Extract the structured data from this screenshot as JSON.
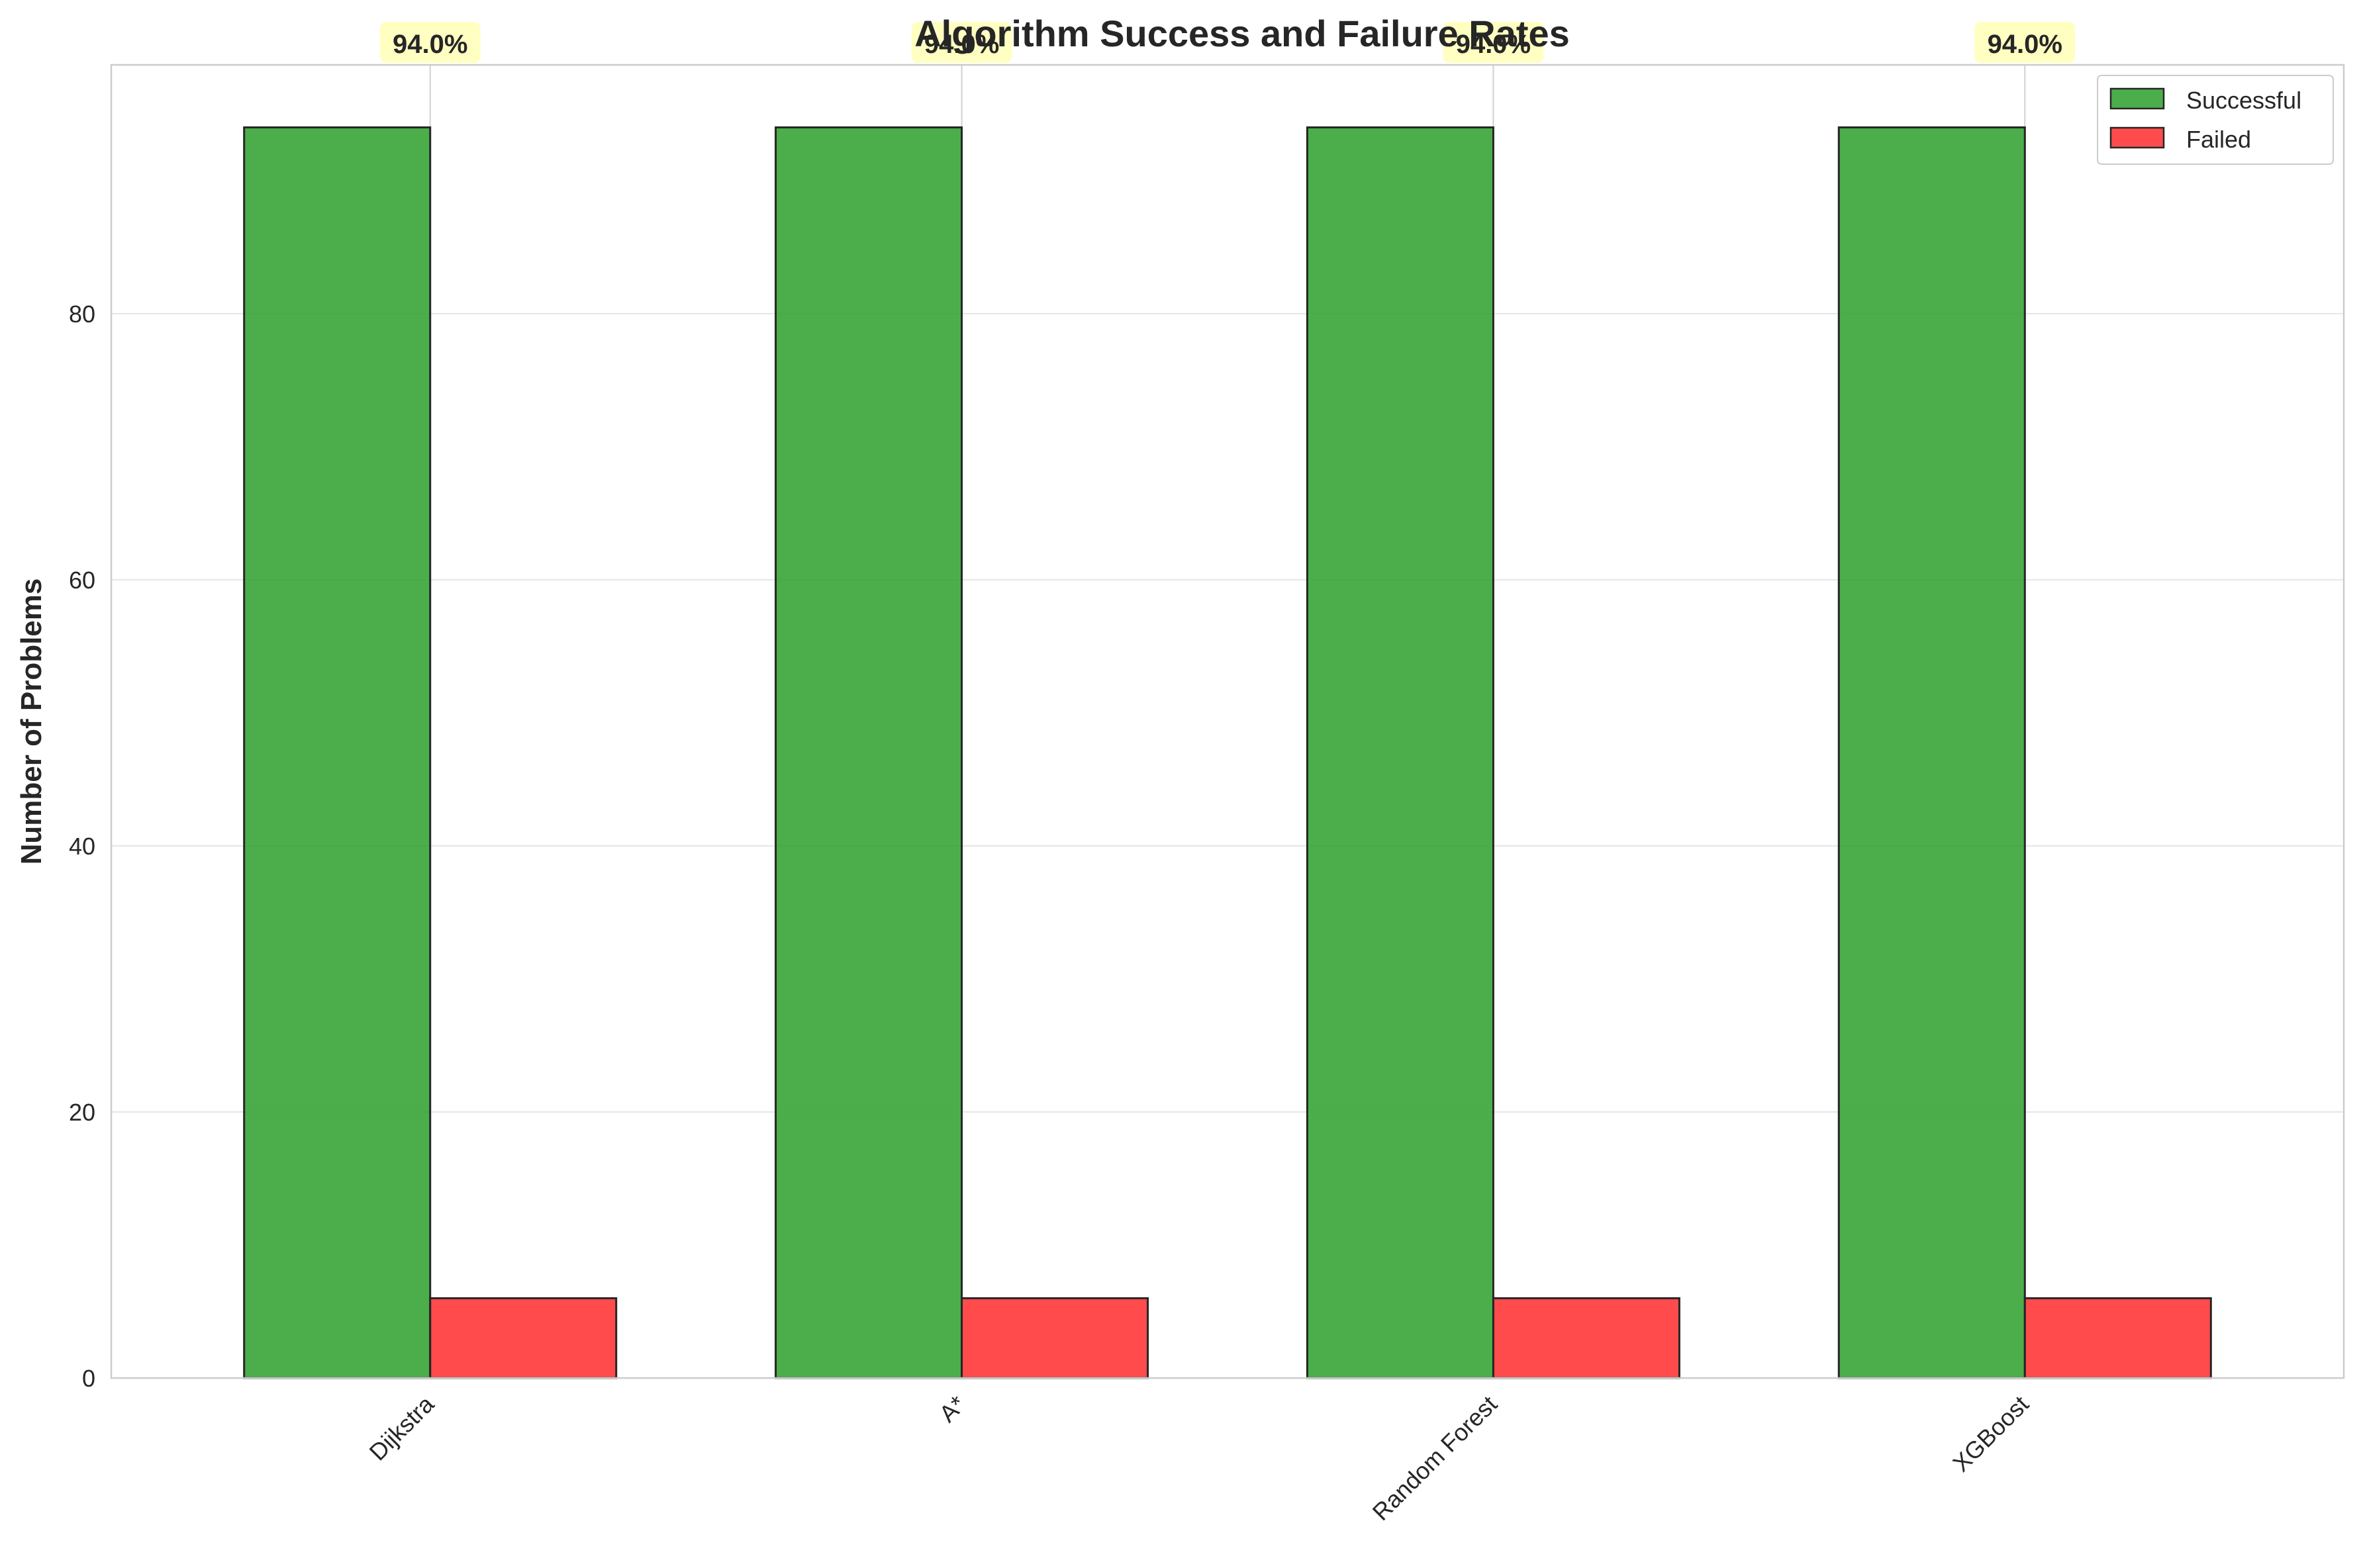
{
  "chart_data": {
    "type": "bar",
    "title": "Algorithm Success and Failure Rates",
    "xlabel": "",
    "ylabel": "Number of Problems",
    "categories": [
      "Dijkstra",
      "A*",
      "Random Forest",
      "XGBoost"
    ],
    "series": [
      {
        "name": "Successful",
        "color": "#2ca02c",
        "values": [
          94,
          94,
          94,
          94
        ]
      },
      {
        "name": "Failed",
        "color": "#ff2b2b",
        "values": [
          6,
          6,
          6,
          6
        ]
      }
    ],
    "rate_labels": [
      "94.0%",
      "94.0%",
      "94.0%",
      "94.0%"
    ],
    "ylim": [
      0,
      98.7
    ],
    "yticks": [
      0,
      20,
      40,
      60,
      80
    ],
    "grid": true,
    "legend_position": "top-right",
    "label_background": "#ffffb3"
  }
}
